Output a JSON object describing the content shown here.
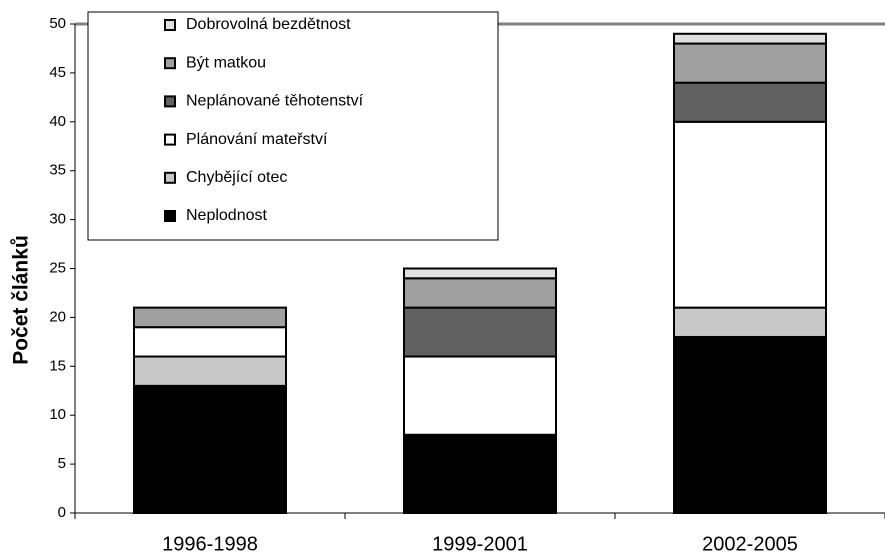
{
  "chart_data": {
    "type": "stacked_bar",
    "ylabel": "Počet článků",
    "categories": [
      "1996-1998",
      "1999-2001",
      "2002-2005"
    ],
    "series": [
      {
        "name": "Neplodnost",
        "color": "#000000",
        "values": [
          13,
          8,
          18
        ]
      },
      {
        "name": "Chybějící otec",
        "color": "#c8c8c8",
        "values": [
          3,
          0,
          3
        ]
      },
      {
        "name": "Plánování mateřství",
        "color": "#ffffff",
        "values": [
          3,
          8,
          19
        ]
      },
      {
        "name": "Neplánované těhotenství",
        "color": "#606060",
        "values": [
          0,
          5,
          4
        ]
      },
      {
        "name": "Být matkou",
        "color": "#a0a0a0",
        "values": [
          2,
          3,
          4
        ]
      },
      {
        "name": "Dobrovolná bezdětnost",
        "color": "#e0e0e0",
        "values": [
          0,
          1,
          1
        ]
      }
    ],
    "ylim": [
      0,
      50
    ],
    "yticks": [
      0,
      5,
      10,
      15,
      20,
      25,
      30,
      35,
      40,
      45,
      50
    ],
    "legend": "top-left"
  }
}
